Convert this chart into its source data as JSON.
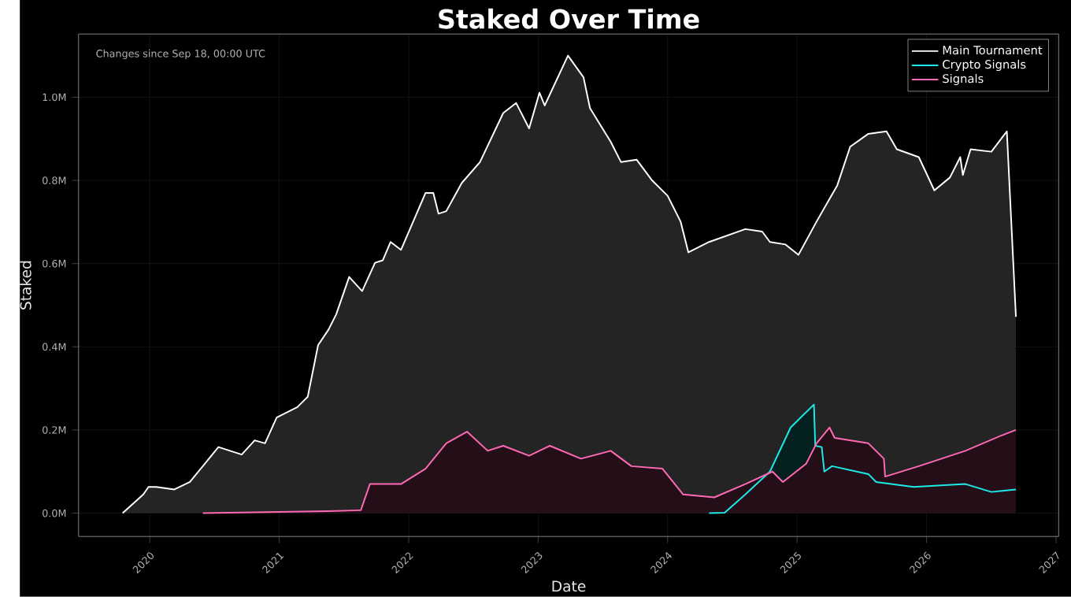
{
  "chart_data": {
    "type": "area",
    "title": "Staked Over Time",
    "xlabel": "Date",
    "ylabel": "Staked",
    "annotations": [
      "Changes since Sep 18, 00:00 UTC"
    ],
    "xlim": [
      2019.45,
      2027.02
    ],
    "ylim": [
      -0.056,
      1.152
    ],
    "xticks": [
      2020,
      2021,
      2022,
      2023,
      2024,
      2025,
      2026,
      2027
    ],
    "yticks": [
      {
        "value": 0,
        "label": "0.0M"
      },
      {
        "value": 0.2,
        "label": "0.2M"
      },
      {
        "value": 0.4,
        "label": "0.4M"
      },
      {
        "value": 0.6,
        "label": "0.6M"
      },
      {
        "value": 0.8,
        "label": "0.8M"
      },
      {
        "value": 1.0,
        "label": "1.0M"
      }
    ],
    "grid": true,
    "legend": "top right",
    "series": [
      {
        "name": "Main Tournament",
        "color": "#ffffff",
        "x": [
          2019.79,
          2019.95,
          2019.99,
          2020.05,
          2020.19,
          2020.31,
          2020.53,
          2020.71,
          2020.81,
          2020.89,
          2020.98,
          2021.14,
          2021.22,
          2021.3,
          2021.38,
          2021.44,
          2021.54,
          2021.64,
          2021.74,
          2021.8,
          2021.86,
          2021.94,
          2022.13,
          2022.19,
          2022.23,
          2022.29,
          2022.41,
          2022.55,
          2022.73,
          2022.83,
          2022.93,
          2023.01,
          2023.05,
          2023.23,
          2023.35,
          2023.4,
          2023.56,
          2023.64,
          2023.76,
          2023.88,
          2024.0,
          2024.1,
          2024.16,
          2024.32,
          2024.6,
          2024.73,
          2024.79,
          2024.91,
          2025.01,
          2025.15,
          2025.31,
          2025.41,
          2025.55,
          2025.69,
          2025.77,
          2025.94,
          2026.06,
          2026.18,
          2026.26,
          2026.28,
          2026.34,
          2026.5,
          2026.62,
          2026.69
        ],
        "values": [
          0,
          0.045,
          0.063,
          0.063,
          0.057,
          0.075,
          0.159,
          0.141,
          0.175,
          0.168,
          0.23,
          0.255,
          0.28,
          0.404,
          0.441,
          0.478,
          0.568,
          0.534,
          0.602,
          0.608,
          0.652,
          0.633,
          0.77,
          0.77,
          0.72,
          0.726,
          0.794,
          0.844,
          0.962,
          0.986,
          0.925,
          1.011,
          0.98,
          1.1,
          1.048,
          0.974,
          0.893,
          0.844,
          0.85,
          0.8,
          0.763,
          0.701,
          0.627,
          0.652,
          0.683,
          0.677,
          0.652,
          0.646,
          0.621,
          0.701,
          0.788,
          0.881,
          0.912,
          0.918,
          0.875,
          0.856,
          0.776,
          0.807,
          0.856,
          0.813,
          0.875,
          0.869,
          0.918,
          0.472
        ]
      },
      {
        "name": "Crypto Signals",
        "color": "#1de9e6",
        "x": [
          2024.32,
          2024.44,
          2024.6,
          2024.79,
          2024.95,
          2025.11,
          2025.13,
          2025.14,
          2025.19,
          2025.21,
          2025.27,
          2025.55,
          2025.61,
          2025.9,
          2026.3,
          2026.5,
          2026.69
        ],
        "values": [
          0,
          0.001,
          0.045,
          0.1,
          0.206,
          0.255,
          0.261,
          0.162,
          0.159,
          0.1,
          0.113,
          0.094,
          0.075,
          0.063,
          0.07,
          0.051,
          0.057
        ]
      },
      {
        "name": "Signals",
        "color": "#ff69b4",
        "x": [
          2020.41,
          2021.38,
          2021.62,
          2021.63,
          2021.7,
          2021.94,
          2022.13,
          2022.29,
          2022.45,
          2022.61,
          2022.73,
          2022.93,
          2023.05,
          2023.09,
          2023.33,
          2023.56,
          2023.72,
          2023.96,
          2024.12,
          2024.36,
          2024.6,
          2024.81,
          2024.89,
          2025.07,
          2025.15,
          2025.25,
          2025.29,
          2025.55,
          2025.67,
          2025.68,
          2025.94,
          2026.3,
          2026.58,
          2026.69
        ],
        "values": [
          0,
          0.005,
          0.007,
          0.007,
          0.07,
          0.07,
          0.107,
          0.168,
          0.196,
          0.15,
          0.162,
          0.138,
          0.156,
          0.162,
          0.131,
          0.15,
          0.113,
          0.107,
          0.045,
          0.038,
          0.07,
          0.1,
          0.075,
          0.119,
          0.168,
          0.206,
          0.181,
          0.168,
          0.131,
          0.088,
          0.113,
          0.15,
          0.187,
          0.2
        ]
      }
    ]
  }
}
